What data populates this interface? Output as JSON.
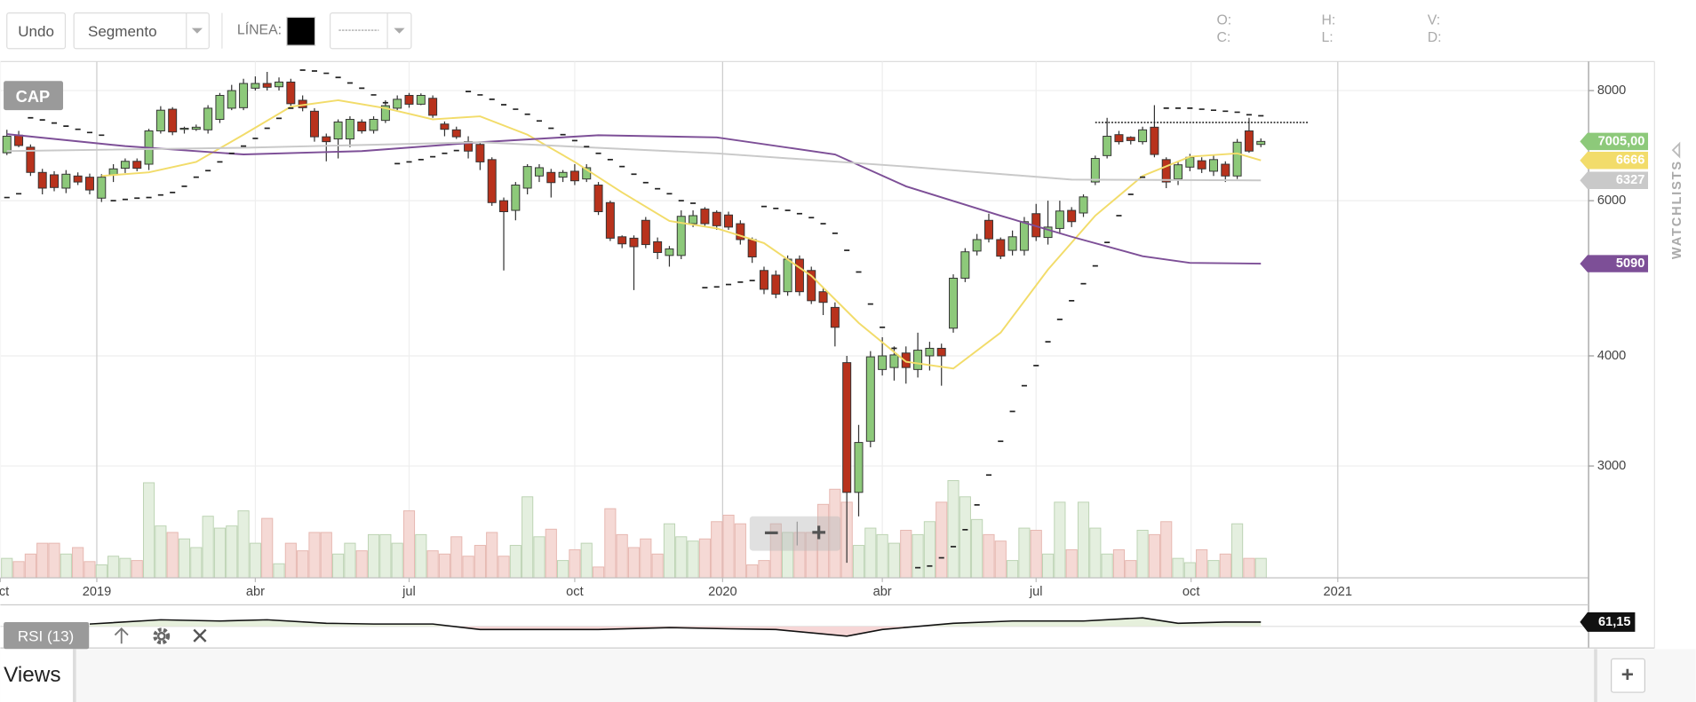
{
  "ui": {
    "toolbar": {
      "undo": "Undo",
      "tool": "Segmento",
      "line_label": "LÍNEA:",
      "line_color": "#000000"
    },
    "ohlc": {
      "o": "O:",
      "h": "H:",
      "v": "V:",
      "c": "C:",
      "l": "L:",
      "d": "D:"
    },
    "zoom_out": "−",
    "zoom_in": "+",
    "sidebar": "WATCHLISTS",
    "views": "Views",
    "add_view": "+"
  },
  "chart_data": [
    {
      "type": "candlestick",
      "symbol": "CAP",
      "log_scale": true,
      "grid": true,
      "colors": {
        "up": "#8dc97a",
        "down": "#b8321c",
        "volume_up": "#e4efdf",
        "volume_down": "#f5d9d5"
      },
      "xlim": [
        -0.55,
        133.7
      ],
      "ylim": [
        2240,
        8630
      ],
      "yticks": [
        3000,
        4000,
        6000,
        8000
      ],
      "xticks": [
        {
          "value": -0.55,
          "label": "oct"
        },
        {
          "value": 7.6,
          "label": "2019"
        },
        {
          "value": 21.0,
          "label": "abr"
        },
        {
          "value": 34.0,
          "label": "jul"
        },
        {
          "value": 48.0,
          "label": "oct"
        },
        {
          "value": 60.5,
          "label": "2020"
        },
        {
          "value": 74.0,
          "label": "abr"
        },
        {
          "value": 87.0,
          "label": "jul"
        },
        {
          "value": 100.1,
          "label": "oct"
        },
        {
          "value": 112.5,
          "label": "2021"
        }
      ],
      "x": [
        0,
        1,
        2,
        3,
        4,
        5,
        6,
        7,
        8,
        9,
        10,
        11,
        12,
        13,
        14,
        15,
        16,
        17,
        18,
        19,
        20,
        21,
        22,
        23,
        24,
        25,
        26,
        27,
        28,
        29,
        30,
        31,
        32,
        33,
        34,
        35,
        36,
        37,
        38,
        39,
        40,
        41,
        42,
        43,
        44,
        45,
        46,
        47,
        48,
        49,
        50,
        51,
        52,
        53,
        54,
        55,
        56,
        57,
        58,
        59,
        60,
        61,
        62,
        63,
        64,
        65,
        66,
        67,
        68,
        69,
        70,
        71,
        72,
        73,
        74,
        75,
        76,
        77,
        78,
        79,
        80,
        81,
        82,
        83,
        84,
        85,
        86,
        87,
        88,
        89,
        90,
        91,
        92,
        93,
        94,
        95,
        96,
        97,
        98,
        99,
        100,
        101,
        102,
        103,
        104,
        105,
        106
      ],
      "open": [
        6800,
        7120,
        6900,
        6460,
        6420,
        6200,
        6400,
        6380,
        6040,
        6420,
        6530,
        6650,
        6600,
        7200,
        7620,
        7230,
        7230,
        7220,
        7420,
        7640,
        7650,
        8050,
        8150,
        8080,
        8180,
        7800,
        7580,
        7090,
        7050,
        7050,
        7370,
        7210,
        7400,
        7640,
        7900,
        7720,
        7840,
        7330,
        7220,
        7000,
        6950,
        6680,
        6000,
        5850,
        6200,
        6400,
        6460,
        6380,
        6480,
        6350,
        6250,
        5970,
        5460,
        5440,
        5700,
        5390,
        5200,
        5200,
        5650,
        5870,
        5820,
        5780,
        5650,
        5420,
        5000,
        4940,
        4730,
        5150,
        5000,
        4730,
        4540,
        3930,
        2800,
        3200,
        3860,
        3880,
        4030,
        3860,
        4000,
        4080,
        4300,
        4900,
        5260,
        5700,
        5420,
        5270,
        5270,
        5800,
        5450,
        5580,
        5850,
        5810,
        6300,
        6750,
        7130,
        7080,
        7000,
        7270,
        6680,
        6350,
        6550,
        6660,
        6480,
        6600,
        6400,
        7200,
        6950
      ],
      "high": [
        7220,
        7200,
        6950,
        6520,
        6480,
        6500,
        6460,
        6440,
        6430,
        6600,
        6700,
        6700,
        7240,
        7680,
        7660,
        7280,
        7320,
        7700,
        7950,
        8120,
        8250,
        8300,
        8400,
        8280,
        8250,
        7900,
        7640,
        7150,
        7420,
        7480,
        7420,
        7480,
        7800,
        7900,
        7950,
        7940,
        7900,
        7380,
        7280,
        7100,
        7000,
        6720,
        6050,
        6300,
        6600,
        6600,
        6520,
        6500,
        6600,
        6600,
        6300,
        6000,
        5480,
        5480,
        5750,
        5450,
        5330,
        5850,
        5850,
        5900,
        5850,
        5830,
        5700,
        5450,
        5050,
        5000,
        5200,
        5200,
        5050,
        4780,
        4600,
        4000,
        3340,
        4050,
        4200,
        4100,
        4100,
        4250,
        4150,
        4130,
        4950,
        5300,
        5500,
        5800,
        5450,
        5550,
        5750,
        5950,
        6000,
        6000,
        5900,
        6100,
        6750,
        7450,
        7200,
        7100,
        7280,
        7700,
        6720,
        6650,
        6780,
        6720,
        6750,
        6650,
        7050,
        7450,
        7060
      ],
      "low": [
        6760,
        6900,
        6400,
        6100,
        6150,
        6120,
        6250,
        6100,
        5980,
        6300,
        6450,
        6480,
        6500,
        7150,
        7120,
        7150,
        7200,
        7150,
        7350,
        7600,
        7600,
        8000,
        8000,
        8000,
        7650,
        7580,
        7000,
        6650,
        6700,
        6900,
        7150,
        7150,
        7350,
        7600,
        7650,
        7700,
        7450,
        7100,
        7050,
        6700,
        6500,
        5920,
        5000,
        5700,
        6100,
        6300,
        6050,
        6300,
        6250,
        6300,
        5780,
        5400,
        5300,
        4750,
        5300,
        5150,
        5050,
        5150,
        5600,
        5600,
        5560,
        5560,
        5350,
        5100,
        4700,
        4650,
        4680,
        4680,
        4580,
        4450,
        4100,
        2330,
        2630,
        3150,
        3800,
        3750,
        3720,
        3780,
        3850,
        3700,
        4250,
        4850,
        5200,
        5380,
        5150,
        5200,
        5200,
        5400,
        5350,
        5500,
        5600,
        5750,
        6250,
        6700,
        6950,
        6950,
        6950,
        6720,
        6200,
        6250,
        6480,
        6450,
        6400,
        6300,
        6350,
        6800,
        6900
      ],
      "close": [
        7100,
        6930,
        6460,
        6200,
        6210,
        6430,
        6300,
        6170,
        6380,
        6520,
        6650,
        6530,
        7200,
        7600,
        7180,
        7250,
        7270,
        7640,
        7900,
        8000,
        8150,
        8150,
        8070,
        8180,
        7730,
        7650,
        7090,
        7000,
        7370,
        7420,
        7200,
        7420,
        7690,
        7820,
        7720,
        7900,
        7500,
        7230,
        7090,
        6830,
        6640,
        5970,
        5830,
        6250,
        6560,
        6540,
        6290,
        6460,
        6320,
        6540,
        5830,
        5440,
        5360,
        5320,
        5350,
        5240,
        5290,
        5760,
        5770,
        5650,
        5620,
        5600,
        5420,
        5180,
        4760,
        4700,
        5150,
        4730,
        4620,
        4600,
        4310,
        2800,
        3190,
        3990,
        4000,
        4010,
        3880,
        4060,
        4080,
        4000,
        4900,
        5250,
        5420,
        5430,
        5190,
        5460,
        5680,
        5460,
        5600,
        5840,
        5680,
        6060,
        6700,
        7100,
        7000,
        7020,
        7220,
        6770,
        6300,
        6590,
        6720,
        6520,
        6680,
        6400,
        6990,
        6830,
        7005
      ],
      "last_close_label": "7005,00",
      "volume": [
        18,
        15,
        22,
        32,
        32,
        22,
        28,
        15,
        12,
        20,
        18,
        16,
        88,
        48,
        42,
        36,
        28,
        57,
        46,
        48,
        62,
        32,
        55,
        13,
        32,
        25,
        42,
        42,
        22,
        32,
        25,
        40,
        40,
        32,
        62,
        40,
        25,
        22,
        38,
        20,
        30,
        42,
        20,
        30,
        75,
        38,
        45,
        16,
        26,
        32,
        10,
        64,
        40,
        28,
        36,
        22,
        50,
        38,
        34,
        36,
        52,
        58,
        50,
        12,
        16,
        50,
        42,
        42,
        42,
        68,
        82,
        70,
        30,
        46,
        40,
        32,
        44,
        40,
        52,
        70,
        90,
        75,
        54,
        40,
        34,
        16,
        46,
        44,
        22,
        70,
        26,
        70,
        46,
        22,
        26,
        16,
        44,
        40,
        52,
        18,
        14,
        26,
        16,
        22,
        50,
        18,
        18
      ],
      "volume_ylim": [
        0,
        100
      ],
      "series": [
        {
          "color": "#f2dc6a",
          "x": [
            8,
            12,
            16,
            20,
            24,
            28,
            32,
            36,
            40,
            44,
            48,
            52,
            56,
            60,
            64,
            68,
            72,
            76,
            80,
            84,
            88,
            92,
            96,
            100,
            104,
            106
          ],
          "values": [
            6400,
            6460,
            6640,
            7130,
            7670,
            7800,
            7640,
            7420,
            7480,
            7130,
            6640,
            6130,
            5690,
            5580,
            5370,
            4930,
            4360,
            3940,
            3870,
            4250,
            5010,
            5770,
            6400,
            6730,
            6790,
            6666
          ]
        },
        {
          "color": "#7d4f97",
          "x": [
            0,
            10,
            20,
            30,
            40,
            50,
            60,
            70,
            76,
            84,
            90,
            96,
            100,
            106
          ],
          "values": [
            7140,
            6920,
            6770,
            6830,
            6990,
            7120,
            7080,
            6770,
            6230,
            5770,
            5460,
            5190,
            5100,
            5090
          ]
        },
        {
          "color": "#c9c9c9",
          "x": [
            0,
            20,
            40,
            60,
            76,
            90,
            106
          ],
          "values": [
            6830,
            6890,
            6990,
            6790,
            6560,
            6340,
            6327
          ]
        },
        {
          "color": "#222222",
          "style": "dash",
          "values": [
            6050,
            6110,
            7450,
            7410,
            7350,
            7290,
            7230,
            7170,
            7120,
            6000,
            6020,
            6040,
            6050,
            6090,
            6130,
            6230,
            6380,
            6490,
            6640,
            6790,
            6920,
            7060,
            7250,
            7440,
            7640,
            8440,
            8420,
            8370,
            8280,
            8160,
            8050,
            7910,
            7750,
            6610,
            6640,
            6680,
            6730,
            6790,
            6840,
            7980,
            7910,
            7820,
            7710,
            7620,
            7520,
            7390,
            7250,
            7130,
            7020,
            6910,
            6790,
            6680,
            6560,
            6430,
            6290,
            6190,
            6110,
            6000,
            5960,
            4780,
            4790,
            4820,
            4850,
            4870,
            5910,
            5880,
            5850,
            5800,
            5740,
            5650,
            5510,
            5270,
            4980,
            4580,
            4310,
            4080,
            null,
            2300,
            2310,
            2360,
            2430,
            2540,
            2710,
            2930,
            3200,
            3460,
            3700,
            3900,
            4150,
            4400,
            4620,
            4830,
            5060,
            5380,
            5770,
            6100,
            6380,
            null,
            7640,
            7640,
            7640,
            7620,
            7600,
            7580,
            7560,
            7510,
            7490
          ]
        }
      ],
      "drawn_line": {
        "y": 7360,
        "x": [
          92,
          110
        ]
      }
    },
    {
      "type": "line",
      "title": "RSI (13)",
      "color": "#111111",
      "xlim": [
        -0.55,
        133.7
      ],
      "ylim": [
        0,
        100
      ],
      "baseline": 50,
      "fill_above": "#e6f0dc",
      "fill_below": "#f6d6d6",
      "x": [
        7,
        13,
        18,
        22,
        27,
        31,
        36,
        40,
        45,
        50,
        56,
        61,
        65,
        71,
        74,
        80,
        85,
        91,
        94,
        96,
        99,
        103,
        106
      ],
      "values": [
        56,
        67,
        64,
        67,
        58,
        56,
        56,
        42,
        42,
        42,
        47,
        44,
        42,
        25,
        42,
        58,
        64,
        64,
        69,
        72,
        58,
        61,
        61.15
      ],
      "last_label": "61,15"
    }
  ]
}
